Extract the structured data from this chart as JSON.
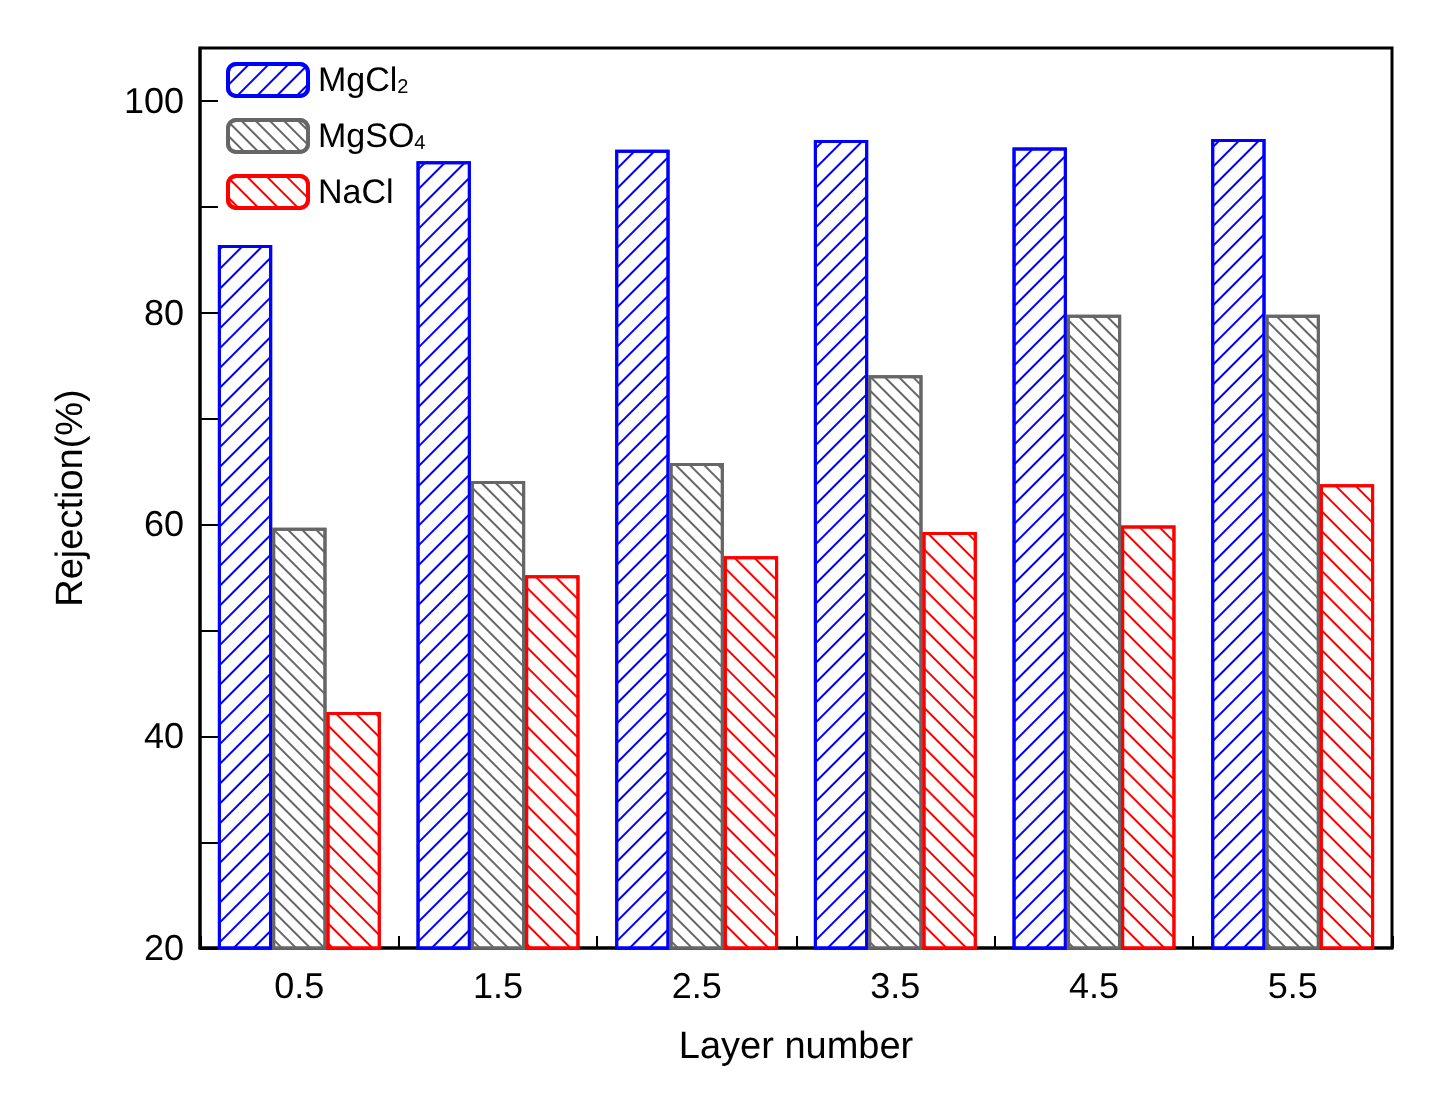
{
  "chart_data": {
    "type": "bar",
    "xlabel": "Layer number",
    "ylabel": "Rejection(%)",
    "categories": [
      "0.5",
      "1.5",
      "2.5",
      "3.5",
      "4.5",
      "5.5"
    ],
    "series": [
      {
        "name": "MgCl$_{2}$",
        "color": "#0000ff",
        "values": [
          86.4,
          94.3,
          95.4,
          96.3,
          95.6,
          96.4
        ]
      },
      {
        "name": "MgSO$_{4}$",
        "color": "#666666",
        "values": [
          59.7,
          64.1,
          65.8,
          74.1,
          79.8,
          79.8
        ]
      },
      {
        "name": "NaCl",
        "color": "#ff0000",
        "values": [
          42.3,
          55.2,
          57.0,
          59.3,
          59.9,
          63.8
        ]
      }
    ],
    "ylim": [
      20,
      105
    ],
    "yticks": [
      20,
      40,
      60,
      80,
      100
    ],
    "grid": false,
    "legend": "top left"
  }
}
